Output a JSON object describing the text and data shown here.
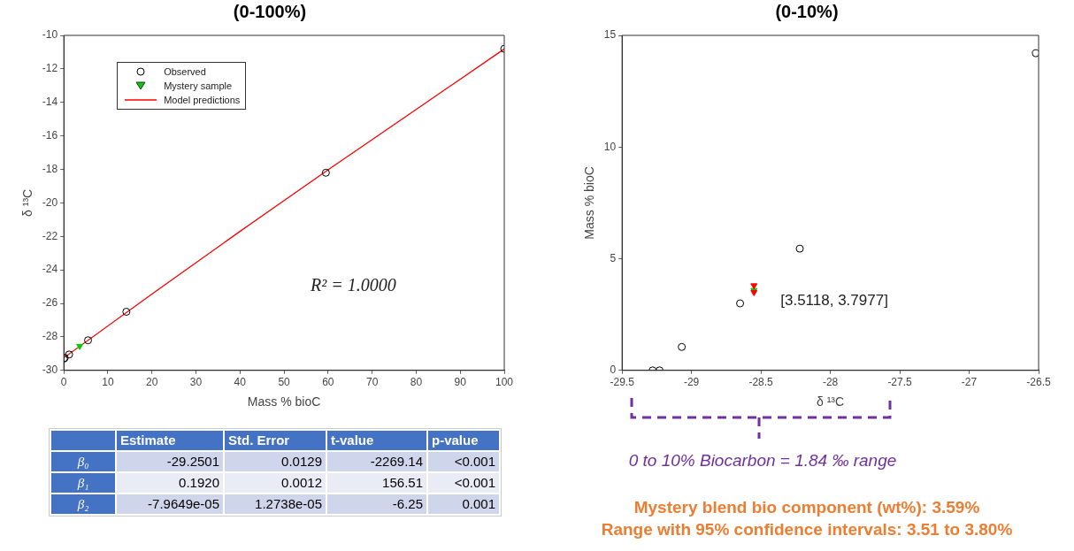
{
  "chart_data": [
    {
      "type": "scatter",
      "title": "(0-100%)",
      "xlabel": "Mass % bioC",
      "ylabel": "δ ¹³C",
      "xlim": [
        0,
        100
      ],
      "xticks": [
        0,
        10,
        20,
        30,
        40,
        50,
        60,
        70,
        80,
        90,
        100
      ],
      "ylim": [
        -30,
        -10
      ],
      "yticks": [
        -30,
        -28,
        -26,
        -24,
        -22,
        -20,
        -18,
        -16,
        -14,
        -12,
        -10
      ],
      "legend": "top left",
      "series": [
        {
          "name": "Observed",
          "type": "scatter",
          "marker": "circle",
          "color": "#000000",
          "x": [
            0,
            0.2,
            1.2,
            5.5,
            14.2,
            59.5,
            100
          ],
          "values": [
            -29.3,
            -29.25,
            -29.05,
            -28.2,
            -26.5,
            -18.2,
            -10.8
          ]
        },
        {
          "name": "Mystery sample",
          "type": "scatter",
          "marker": "triangle",
          "color": "#00cc00",
          "x": [
            3.6
          ],
          "values": [
            -28.55
          ]
        },
        {
          "name": "Model predictions",
          "type": "line",
          "marker": "none",
          "line_style": "solid",
          "color": "#ff0000",
          "x": [
            0,
            20,
            40,
            60,
            80,
            100
          ],
          "values": [
            -29.25,
            -25.44,
            -21.7,
            -18.03,
            -14.42,
            -10.81
          ]
        }
      ],
      "annotations": [
        "R² = 1.0000"
      ]
    },
    {
      "type": "scatter",
      "title": "(0-10%)",
      "xlabel": "δ ¹³C",
      "ylabel": "Mass % bioC",
      "xlim": [
        -29.5,
        -26.5
      ],
      "xticks": [
        -29.5,
        -29,
        -28.5,
        -28,
        -27.5,
        -27,
        -26.5
      ],
      "ylim": [
        0,
        15
      ],
      "yticks": [
        0,
        5,
        10,
        15
      ],
      "series": [
        {
          "type": "scatter",
          "marker": "circle",
          "color": "#000000",
          "x": [
            -29.28,
            -29.23,
            -29.07,
            -28.65,
            -28.22,
            -26.52
          ],
          "values": [
            0,
            0,
            1.05,
            3.0,
            5.45,
            14.2
          ]
        },
        {
          "type": "scatter",
          "marker": "triangle",
          "color": "#ff0000",
          "x": [
            -28.55,
            -28.55
          ],
          "values": [
            3.5,
            3.8
          ]
        },
        {
          "type": "scatter",
          "marker": "triangle",
          "color": "#00cc00",
          "x": [
            -28.55
          ],
          "values": [
            3.59
          ]
        }
      ],
      "annotations": [
        {
          "text": "[3.5118, 3.7977]",
          "x": -28.55,
          "y": 3.59
        },
        "0 to 10% Biocarbon = 1.84 ‰ range",
        "Mystery blend bio component (wt%): 3.59%",
        "Range with 95% confidence intervals: 3.51 to 3.80%"
      ]
    },
    {
      "type": "other",
      "annotations": [
        "Estimate",
        "Std. Error",
        "t-value",
        "p-value",
        "β₀",
        "-29.2501",
        "0.0129",
        "-2269.14",
        "<0.001",
        "β₁",
        "0.1920",
        "0.0012",
        "156.51",
        "<0.001",
        "β₂",
        "-7.9649e-05",
        "1.2738e-05",
        "-6.25",
        "0.001"
      ]
    }
  ]
}
